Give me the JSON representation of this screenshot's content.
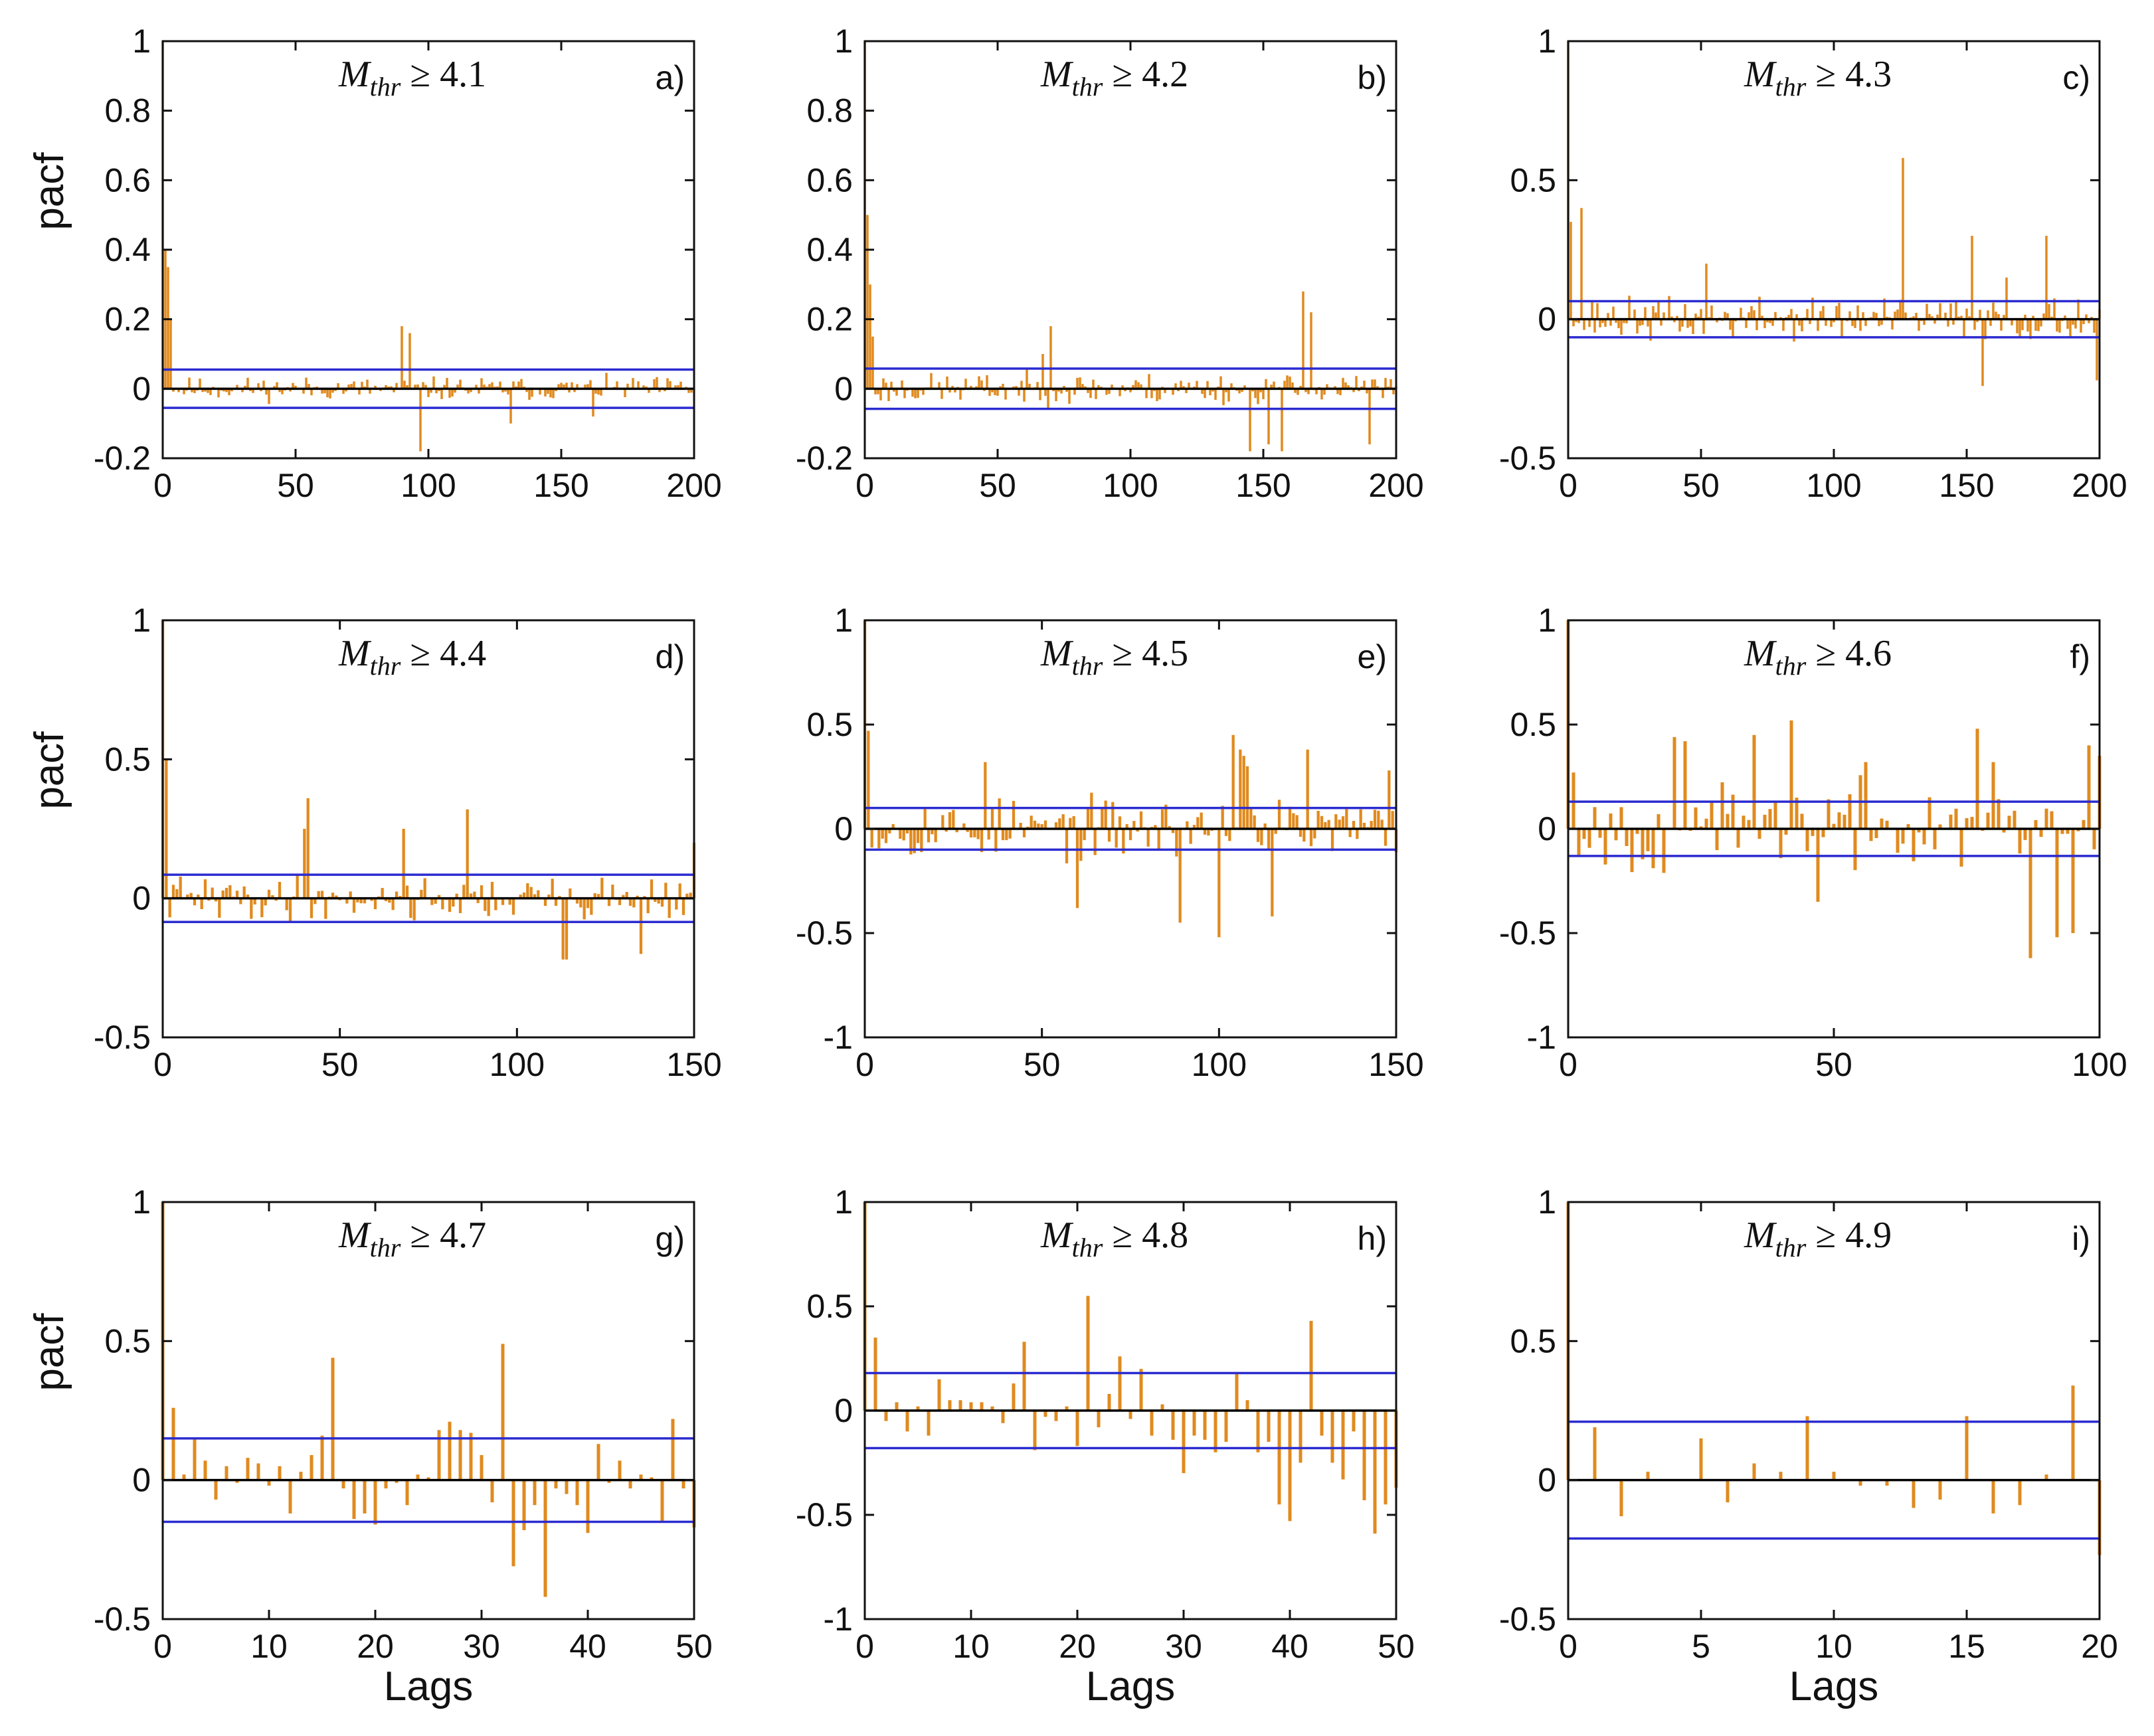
{
  "chart_data": [
    {
      "type": "bar",
      "panel": "a)",
      "mthr": "4.1",
      "xlim": [
        0,
        200
      ],
      "ylim": [
        -0.2,
        1
      ],
      "yticks": [
        "1",
        "0.8",
        "0.6",
        "0.4",
        "0.2",
        "0",
        "-0.2"
      ],
      "xticks": [
        "0",
        "50",
        "100",
        "150",
        "200"
      ],
      "ylabel": "pacf",
      "xlabel": "",
      "conf_bound": 0.055,
      "seed": 11,
      "noise": 0.03,
      "spikes": [
        [
          0,
          1
        ],
        [
          1,
          0.4
        ],
        [
          2,
          0.35
        ],
        [
          3,
          0.2
        ],
        [
          90,
          0.18
        ],
        [
          93,
          0.16
        ],
        [
          97,
          -0.18
        ],
        [
          131,
          -0.1
        ],
        [
          162,
          -0.08
        ]
      ]
    },
    {
      "type": "bar",
      "panel": "b)",
      "mthr": "4.2",
      "xlim": [
        0,
        200
      ],
      "ylim": [
        -0.2,
        1
      ],
      "yticks": [
        "1",
        "0.8",
        "0.6",
        "0.4",
        "0.2",
        "0",
        "-0.2"
      ],
      "xticks": [
        "0",
        "50",
        "100",
        "150",
        "200"
      ],
      "ylabel": "",
      "xlabel": "",
      "conf_bound": 0.058,
      "seed": 23,
      "noise": 0.04,
      "spikes": [
        [
          0,
          1
        ],
        [
          1,
          0.5
        ],
        [
          2,
          0.3
        ],
        [
          3,
          0.15
        ],
        [
          70,
          0.18
        ],
        [
          67,
          0.1
        ],
        [
          145,
          -0.18
        ],
        [
          152,
          -0.16
        ],
        [
          157,
          -0.18
        ],
        [
          165,
          0.28
        ],
        [
          168,
          0.22
        ],
        [
          190,
          -0.16
        ]
      ]
    },
    {
      "type": "bar",
      "panel": "c)",
      "mthr": "4.3",
      "xlim": [
        0,
        200
      ],
      "ylim": [
        -0.5,
        1
      ],
      "yticks": [
        "1",
        "0.5",
        "0",
        "-0.5"
      ],
      "xticks": [
        "0",
        "50",
        "100",
        "150",
        "200"
      ],
      "ylabel": "",
      "xlabel": "",
      "conf_bound": 0.065,
      "seed": 37,
      "noise": 0.07,
      "spikes": [
        [
          0,
          1
        ],
        [
          1,
          0.35
        ],
        [
          5,
          0.4
        ],
        [
          52,
          0.2
        ],
        [
          126,
          0.58
        ],
        [
          152,
          0.3
        ],
        [
          165,
          0.15
        ],
        [
          180,
          0.3
        ],
        [
          156,
          -0.24
        ],
        [
          199,
          -0.22
        ]
      ]
    },
    {
      "type": "bar",
      "panel": "d)",
      "mthr": "4.4",
      "xlim": [
        0,
        150
      ],
      "ylim": [
        -0.5,
        1
      ],
      "yticks": [
        "1",
        "0.5",
        "0",
        "-0.5"
      ],
      "xticks": [
        "0",
        "50",
        "100",
        "150"
      ],
      "ylabel": "pacf",
      "xlabel": "",
      "conf_bound": 0.085,
      "seed": 41,
      "noise": 0.07,
      "spikes": [
        [
          0,
          1
        ],
        [
          1,
          0.5
        ],
        [
          41,
          0.36
        ],
        [
          40,
          0.25
        ],
        [
          68,
          0.25
        ],
        [
          86,
          0.32
        ],
        [
          113,
          -0.22
        ],
        [
          114,
          -0.22
        ],
        [
          135,
          -0.2
        ],
        [
          150,
          0.2
        ]
      ]
    },
    {
      "type": "bar",
      "panel": "e)",
      "mthr": "4.5",
      "xlim": [
        0,
        150
      ],
      "ylim": [
        -1,
        1
      ],
      "yticks": [
        "1",
        "0.5",
        "0",
        "-0.5",
        "-1"
      ],
      "xticks": [
        "0",
        "50",
        "100",
        "150"
      ],
      "ylabel": "",
      "xlabel": "",
      "conf_bound": 0.1,
      "seed": 53,
      "noise": 0.13,
      "spikes": [
        [
          0,
          1
        ],
        [
          1,
          0.47
        ],
        [
          34,
          0.32
        ],
        [
          60,
          -0.38
        ],
        [
          89,
          -0.45
        ],
        [
          100,
          -0.52
        ],
        [
          104,
          0.45
        ],
        [
          106,
          0.38
        ],
        [
          107,
          0.35
        ],
        [
          108,
          0.3
        ],
        [
          115,
          -0.42
        ],
        [
          125,
          0.38
        ],
        [
          148,
          0.28
        ]
      ]
    },
    {
      "type": "bar",
      "panel": "f)",
      "mthr": "4.6",
      "xlim": [
        0,
        100
      ],
      "ylim": [
        -1,
        1
      ],
      "yticks": [
        "1",
        "0.5",
        "0",
        "-0.5",
        "-1"
      ],
      "xticks": [
        "0",
        "50",
        "100"
      ],
      "ylabel": "",
      "xlabel": "",
      "conf_bound": 0.13,
      "seed": 67,
      "noise": 0.18,
      "spikes": [
        [
          0,
          1
        ],
        [
          1,
          0.27
        ],
        [
          20,
          0.44
        ],
        [
          22,
          0.42
        ],
        [
          35,
          0.45
        ],
        [
          42,
          0.52
        ],
        [
          47,
          -0.35
        ],
        [
          56,
          0.32
        ],
        [
          77,
          0.48
        ],
        [
          80,
          0.32
        ],
        [
          87,
          -0.62
        ],
        [
          92,
          -0.52
        ],
        [
          95,
          -0.5
        ],
        [
          98,
          0.4
        ],
        [
          100,
          0.35
        ]
      ]
    },
    {
      "type": "bar",
      "panel": "g)",
      "mthr": "4.7",
      "xlim": [
        0,
        50
      ],
      "ylim": [
        -0.5,
        1
      ],
      "yticks": [
        "1",
        "0.5",
        "0",
        "-0.5"
      ],
      "xticks": [
        "0",
        "10",
        "20",
        "30",
        "40",
        "50"
      ],
      "ylabel": "pacf",
      "xlabel": "Lags",
      "conf_bound": 0.15,
      "values": [
        1,
        0.26,
        0.02,
        0.15,
        0.07,
        -0.07,
        0.05,
        -0.01,
        0.08,
        0.06,
        -0.02,
        0.05,
        -0.12,
        0.03,
        0.09,
        0.16,
        0.44,
        -0.03,
        -0.14,
        -0.12,
        -0.16,
        -0.03,
        -0.01,
        -0.09,
        0.02,
        0.01,
        0.18,
        0.21,
        0.18,
        0.17,
        0.09,
        -0.08,
        0.49,
        -0.31,
        -0.18,
        -0.09,
        -0.42,
        -0.03,
        -0.05,
        -0.09,
        -0.19,
        0.13,
        -0.01,
        0.07,
        -0.03,
        0.02,
        0.01,
        -0.15,
        0.22,
        -0.03,
        -0.17
      ]
    },
    {
      "type": "bar",
      "panel": "h)",
      "mthr": "4.8",
      "xlim": [
        0,
        50
      ],
      "ylim": [
        -1,
        1
      ],
      "yticks": [
        "1",
        "0.5",
        "0",
        "-0.5",
        "-1"
      ],
      "xticks": [
        "0",
        "10",
        "20",
        "30",
        "40",
        "50"
      ],
      "ylabel": "",
      "xlabel": "Lags",
      "conf_bound": 0.18,
      "values": [
        1,
        0.35,
        -0.05,
        0.04,
        -0.1,
        0.02,
        -0.12,
        0.15,
        0.05,
        0.05,
        0.04,
        0.04,
        0.02,
        -0.06,
        0.13,
        0.33,
        -0.19,
        -0.03,
        -0.05,
        0.02,
        -0.17,
        0.55,
        -0.08,
        0.08,
        0.26,
        -0.04,
        0.2,
        -0.12,
        0.03,
        -0.14,
        -0.3,
        -0.12,
        -0.14,
        -0.2,
        -0.15,
        0.18,
        0.05,
        -0.2,
        -0.15,
        -0.45,
        -0.53,
        -0.25,
        0.43,
        -0.12,
        -0.25,
        -0.33,
        -0.1,
        -0.43,
        -0.59,
        -0.45,
        -0.37
      ]
    },
    {
      "type": "bar",
      "panel": "i)",
      "mthr": "4.9",
      "xlim": [
        0,
        20
      ],
      "ylim": [
        -0.5,
        1
      ],
      "yticks": [
        "1",
        "0.5",
        "0",
        "-0.5"
      ],
      "xticks": [
        "0",
        "5",
        "10",
        "15",
        "20"
      ],
      "ylabel": "",
      "xlabel": "Lags",
      "conf_bound": 0.21,
      "values": [
        1,
        0.19,
        -0.13,
        0.03,
        0.0,
        0.15,
        -0.08,
        0.06,
        0.03,
        0.23,
        0.03,
        -0.02,
        -0.02,
        -0.1,
        -0.07,
        0.23,
        -0.12,
        -0.09,
        0.02,
        0.34,
        -0.27
      ]
    }
  ],
  "labels": {
    "ylabel": "pacf",
    "xlabel": "Lags",
    "mthr_symbol": "M",
    "mthr_sub": "thr",
    "mthr_op": " ≥ "
  },
  "colors": {
    "bar": "#e08a1e",
    "conf_line": "#2b2bd0",
    "zero_line": "#000000",
    "axis": "#111111"
  }
}
